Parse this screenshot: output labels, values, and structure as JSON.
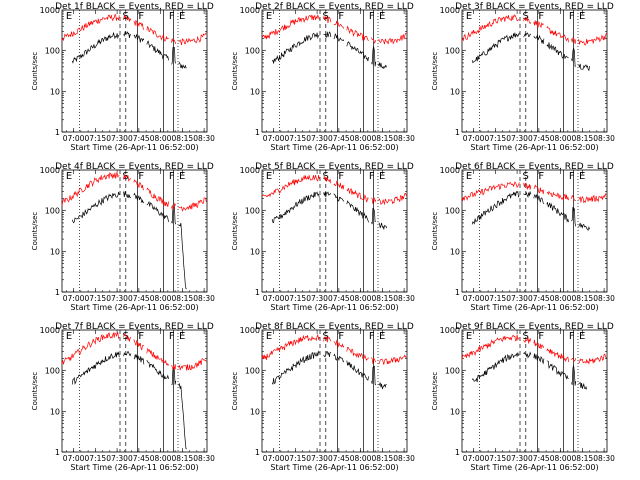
{
  "page": {
    "title": ""
  },
  "chart_data": [
    {
      "type": "line",
      "title": "Det 1f BLACK = Events, RED = LLD",
      "xlabel": "Start Time (26-Apr-11 06:52:00)",
      "ylabel": "Counts/sec",
      "grid": false,
      "yscale": "log",
      "ylim": [
        1,
        1000
      ],
      "xlim": [
        "06:52",
        "08:32"
      ],
      "x_ticks": [
        "07:00",
        "07:15",
        "07:30",
        "07:45",
        "08:00",
        "08:15",
        "08:30"
      ],
      "y_ticks": [
        "1",
        "10",
        "100",
        "1000"
      ],
      "marker_labels": [
        "E",
        "S",
        "F",
        "F",
        "E"
      ],
      "series": [
        {
          "color": "#000000",
          "profile": "A"
        },
        {
          "color": "#ff0000",
          "profile": "R1"
        }
      ]
    },
    {
      "type": "line",
      "title": "Det 2f BLACK = Events, RED = LLD",
      "xlabel": "Start Time (26-Apr-11 06:52:00)",
      "ylabel": "Counts/sec",
      "grid": false,
      "yscale": "log",
      "ylim": [
        1,
        1000
      ],
      "xlim": [
        "06:52",
        "08:32"
      ],
      "x_ticks": [
        "07:00",
        "07:15",
        "07:30",
        "07:45",
        "08:00",
        "08:15",
        "08:30"
      ],
      "y_ticks": [
        "1",
        "10",
        "100",
        "1000"
      ],
      "marker_labels": [
        "E",
        "S",
        "F",
        "F",
        "E"
      ],
      "series": [
        {
          "color": "#000000",
          "profile": "A"
        },
        {
          "color": "#ff0000",
          "profile": "R1"
        }
      ]
    },
    {
      "type": "line",
      "title": "Det 3f BLACK = Events, RED = LLD",
      "xlabel": "Start Time (26-Apr-11 06:52:00)",
      "ylabel": "Counts/sec",
      "grid": false,
      "yscale": "log",
      "ylim": [
        1,
        1000
      ],
      "xlim": [
        "06:52",
        "08:32"
      ],
      "x_ticks": [
        "07:00",
        "07:15",
        "07:30",
        "07:45",
        "08:00",
        "08:15",
        "08:30"
      ],
      "y_ticks": [
        "1",
        "10",
        "100",
        "1000"
      ],
      "marker_labels": [
        "E",
        "S",
        "F",
        "F",
        "E"
      ],
      "series": [
        {
          "color": "#000000",
          "profile": "B"
        },
        {
          "color": "#ff0000",
          "profile": "R1"
        }
      ]
    },
    {
      "type": "line",
      "title": "Det 4f BLACK = Events, RED = LLD",
      "xlabel": "Start Time (26-Apr-11 06:52:00)",
      "ylabel": "Counts/sec",
      "grid": false,
      "yscale": "log",
      "ylim": [
        1,
        1000
      ],
      "xlim": [
        "06:52",
        "08:32"
      ],
      "x_ticks": [
        "07:00",
        "07:15",
        "07:30",
        "07:45",
        "08:00",
        "08:15",
        "08:30"
      ],
      "y_ticks": [
        "1",
        "10",
        "100",
        "1000"
      ],
      "marker_labels": [
        "E",
        "S",
        "F",
        "F",
        "E"
      ],
      "series": [
        {
          "color": "#000000",
          "profile": "C"
        },
        {
          "color": "#ff0000",
          "profile": "R2"
        }
      ]
    },
    {
      "type": "line",
      "title": "Det 5f BLACK = Events, RED = LLD",
      "xlabel": "Start Time (26-Apr-11 06:52:00)",
      "ylabel": "Counts/sec",
      "grid": false,
      "yscale": "log",
      "ylim": [
        1,
        1000
      ],
      "xlim": [
        "06:52",
        "08:32"
      ],
      "x_ticks": [
        "07:00",
        "07:15",
        "07:30",
        "07:45",
        "08:00",
        "08:15",
        "08:30"
      ],
      "y_ticks": [
        "1",
        "10",
        "100",
        "1000"
      ],
      "marker_labels": [
        "E",
        "S",
        "F",
        "F",
        "E"
      ],
      "series": [
        {
          "color": "#000000",
          "profile": "A"
        },
        {
          "color": "#ff0000",
          "profile": "R1"
        }
      ]
    },
    {
      "type": "line",
      "title": "Det 6f BLACK = Events, RED = LLD",
      "xlabel": "Start Time (26-Apr-11 06:52:00)",
      "ylabel": "Counts/sec",
      "grid": false,
      "yscale": "log",
      "ylim": [
        1,
        1000
      ],
      "xlim": [
        "06:52",
        "08:32"
      ],
      "x_ticks": [
        "07:00",
        "07:15",
        "07:30",
        "07:45",
        "08:00",
        "08:15",
        "08:30"
      ],
      "y_ticks": [
        "1",
        "10",
        "100",
        "1000"
      ],
      "marker_labels": [
        "E",
        "S",
        "F",
        "F",
        "E"
      ],
      "series": [
        {
          "color": "#000000",
          "profile": "B"
        },
        {
          "color": "#ff0000",
          "profile": "R3"
        }
      ]
    },
    {
      "type": "line",
      "title": "Det 7f BLACK = Events, RED = LLD",
      "xlabel": "Start Time (26-Apr-11 06:52:00)",
      "ylabel": "Counts/sec",
      "grid": false,
      "yscale": "log",
      "ylim": [
        1,
        1000
      ],
      "xlim": [
        "06:52",
        "08:32"
      ],
      "x_ticks": [
        "07:00",
        "07:15",
        "07:30",
        "07:45",
        "08:00",
        "08:15",
        "08:30"
      ],
      "y_ticks": [
        "1",
        "10",
        "100",
        "1000"
      ],
      "marker_labels": [
        "E",
        "S",
        "F",
        "F",
        "E"
      ],
      "series": [
        {
          "color": "#000000",
          "profile": "C"
        },
        {
          "color": "#ff0000",
          "profile": "R2"
        }
      ]
    },
    {
      "type": "line",
      "title": "Det 8f BLACK = Events, RED = LLD",
      "xlabel": "Start Time (26-Apr-11 06:52:00)",
      "ylabel": "Counts/sec",
      "grid": false,
      "yscale": "log",
      "ylim": [
        1,
        1000
      ],
      "xlim": [
        "06:52",
        "08:32"
      ],
      "x_ticks": [
        "07:00",
        "07:15",
        "07:30",
        "07:45",
        "08:00",
        "08:15",
        "08:30"
      ],
      "y_ticks": [
        "1",
        "10",
        "100",
        "1000"
      ],
      "marker_labels": [
        "E",
        "S",
        "F",
        "F",
        "E"
      ],
      "series": [
        {
          "color": "#000000",
          "profile": "A"
        },
        {
          "color": "#ff0000",
          "profile": "R1"
        }
      ]
    },
    {
      "type": "line",
      "title": "Det 9f BLACK = Events, RED = LLD",
      "xlabel": "Start Time (26-Apr-11 06:52:00)",
      "ylabel": "Counts/sec",
      "grid": false,
      "yscale": "log",
      "ylim": [
        1,
        1000
      ],
      "xlim": [
        "06:52",
        "08:32"
      ],
      "x_ticks": [
        "07:00",
        "07:15",
        "07:30",
        "07:45",
        "08:00",
        "08:15",
        "08:30"
      ],
      "y_ticks": [
        "1",
        "10",
        "100",
        "1000"
      ],
      "marker_labels": [
        "E",
        "S",
        "F",
        "F",
        "E"
      ],
      "series": [
        {
          "color": "#000000",
          "profile": "A"
        },
        {
          "color": "#ff0000",
          "profile": "R1"
        }
      ]
    }
  ]
}
